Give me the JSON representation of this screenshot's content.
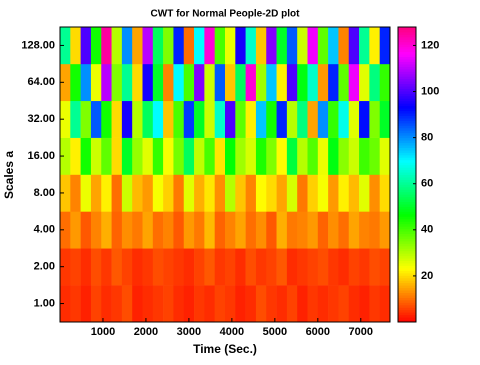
{
  "chart_data": {
    "type": "heatmap",
    "title": "CWT for Normal People-2D plot",
    "x_label": "Time (Sec.)",
    "y_label": "Scales a",
    "categories": [
      "1.00",
      "2.00",
      "4.00",
      "8.00",
      "16.00",
      "32.00",
      "64.00",
      "128.00"
    ],
    "x": [
      120,
      360,
      600,
      840,
      1080,
      1320,
      1560,
      1800,
      2040,
      2280,
      2520,
      2760,
      3000,
      3240,
      3480,
      3720,
      3960,
      4200,
      4440,
      4680,
      4920,
      5160,
      5400,
      5640,
      5880,
      6120,
      6360,
      6600,
      6840,
      7080,
      7320,
      7560
    ],
    "xlim": [
      0,
      7680
    ],
    "xticks": [
      1000,
      2000,
      3000,
      4000,
      5000,
      6000,
      7000
    ],
    "values": [
      [
        4,
        5,
        3,
        6,
        4,
        5,
        7,
        3,
        4,
        5,
        6,
        4,
        3,
        5,
        4,
        6,
        5,
        3,
        4,
        7,
        5,
        4,
        6,
        3,
        5,
        4,
        5,
        6,
        4,
        3,
        5,
        4
      ],
      [
        5,
        6,
        4,
        7,
        5,
        8,
        6,
        4,
        5,
        7,
        6,
        5,
        4,
        6,
        8,
        5,
        6,
        4,
        7,
        5,
        6,
        8,
        4,
        5,
        6,
        7,
        5,
        4,
        6,
        5,
        7,
        6
      ],
      [
        10,
        14,
        8,
        12,
        16,
        9,
        13,
        11,
        15,
        10,
        12,
        8,
        14,
        11,
        17,
        9,
        12,
        15,
        10,
        13,
        8,
        16,
        11,
        12,
        14,
        9,
        13,
        10,
        15,
        12,
        11,
        14
      ],
      [
        18,
        12,
        25,
        15,
        22,
        10,
        28,
        17,
        14,
        24,
        19,
        11,
        26,
        16,
        21,
        13,
        30,
        18,
        12,
        23,
        20,
        15,
        27,
        11,
        19,
        24,
        14,
        22,
        17,
        26,
        13,
        20
      ],
      [
        30,
        22,
        45,
        28,
        38,
        20,
        50,
        33,
        26,
        42,
        24,
        36,
        55,
        29,
        40,
        21,
        47,
        32,
        27,
        44,
        35,
        23,
        52,
        30,
        39,
        25,
        48,
        34,
        28,
        41,
        37,
        26
      ],
      [
        25,
        60,
        35,
        85,
        45,
        20,
        95,
        30,
        55,
        70,
        18,
        40,
        88,
        50,
        28,
        65,
        100,
        38,
        22,
        75,
        45,
        90,
        30,
        58,
        15,
        80,
        42,
        68,
        26,
        92,
        35,
        50
      ],
      [
        15,
        45,
        80,
        25,
        110,
        35,
        60,
        20,
        95,
        50,
        12,
        70,
        40,
        105,
        28,
        85,
        18,
        55,
        120,
        32,
        75,
        22,
        100,
        48,
        65,
        14,
        90,
        38,
        115,
        26,
        58,
        42
      ],
      [
        60,
        20,
        100,
        45,
        125,
        30,
        80,
        15,
        110,
        55,
        35,
        90,
        10,
        70,
        120,
        40,
        25,
        95,
        65,
        18,
        105,
        50,
        85,
        28,
        115,
        38,
        75,
        12,
        100,
        60,
        22,
        90
      ]
    ],
    "colormap": "hsv",
    "zlim": [
      0,
      128
    ],
    "zticks": [
      20,
      40,
      60,
      80,
      100,
      120
    ]
  }
}
